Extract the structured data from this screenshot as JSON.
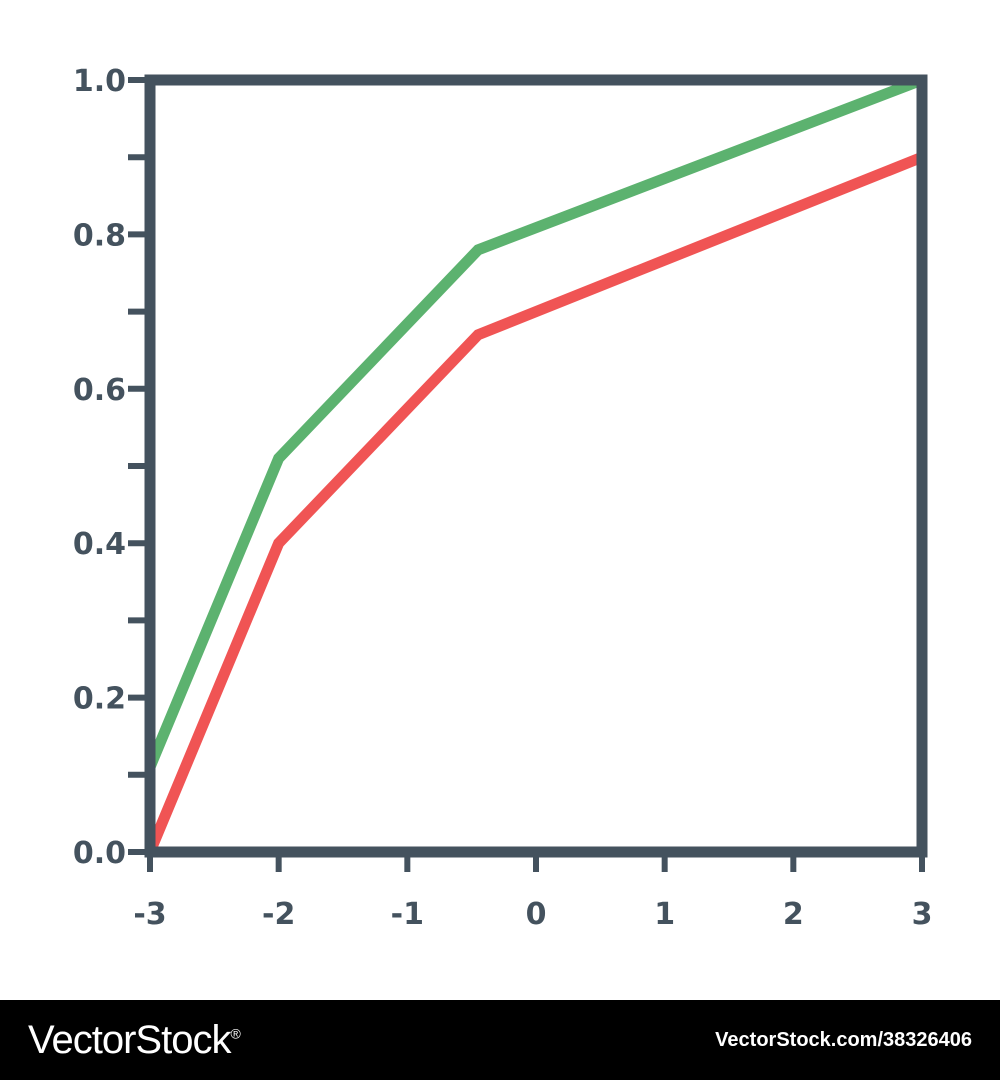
{
  "chart_data": {
    "type": "line",
    "title": "",
    "xlabel": "",
    "ylabel": "",
    "x": [
      -3,
      -2,
      -0.45,
      3
    ],
    "xlim": [
      -3,
      3
    ],
    "ylim": [
      0,
      1.0
    ],
    "xticks": [
      -3,
      -2,
      -1,
      0,
      1,
      2,
      3
    ],
    "xtick_labels": [
      "-3",
      "-2",
      "-1",
      "0",
      "1",
      "2",
      "3"
    ],
    "yticks": [
      0.0,
      0.2,
      0.4,
      0.6,
      0.8,
      1.0
    ],
    "ytick_labels": [
      "0.0",
      "0.2",
      "0.4",
      "0.6",
      "0.8",
      "1.0"
    ],
    "y_minor_ticks": [
      0.1,
      0.3,
      0.5,
      0.7,
      0.9
    ],
    "grid": false,
    "series": [
      {
        "values": [
          0.11,
          0.51,
          0.78,
          1.0
        ],
        "color": "#5cb26f"
      },
      {
        "values": [
          0.0,
          0.4,
          0.67,
          0.9
        ],
        "color": "#f05454"
      }
    ],
    "axis_color": "#44525e"
  },
  "watermark": {
    "brand": "VectorStock",
    "registered_mark": "®",
    "url": "VectorStock.com/38326406"
  }
}
